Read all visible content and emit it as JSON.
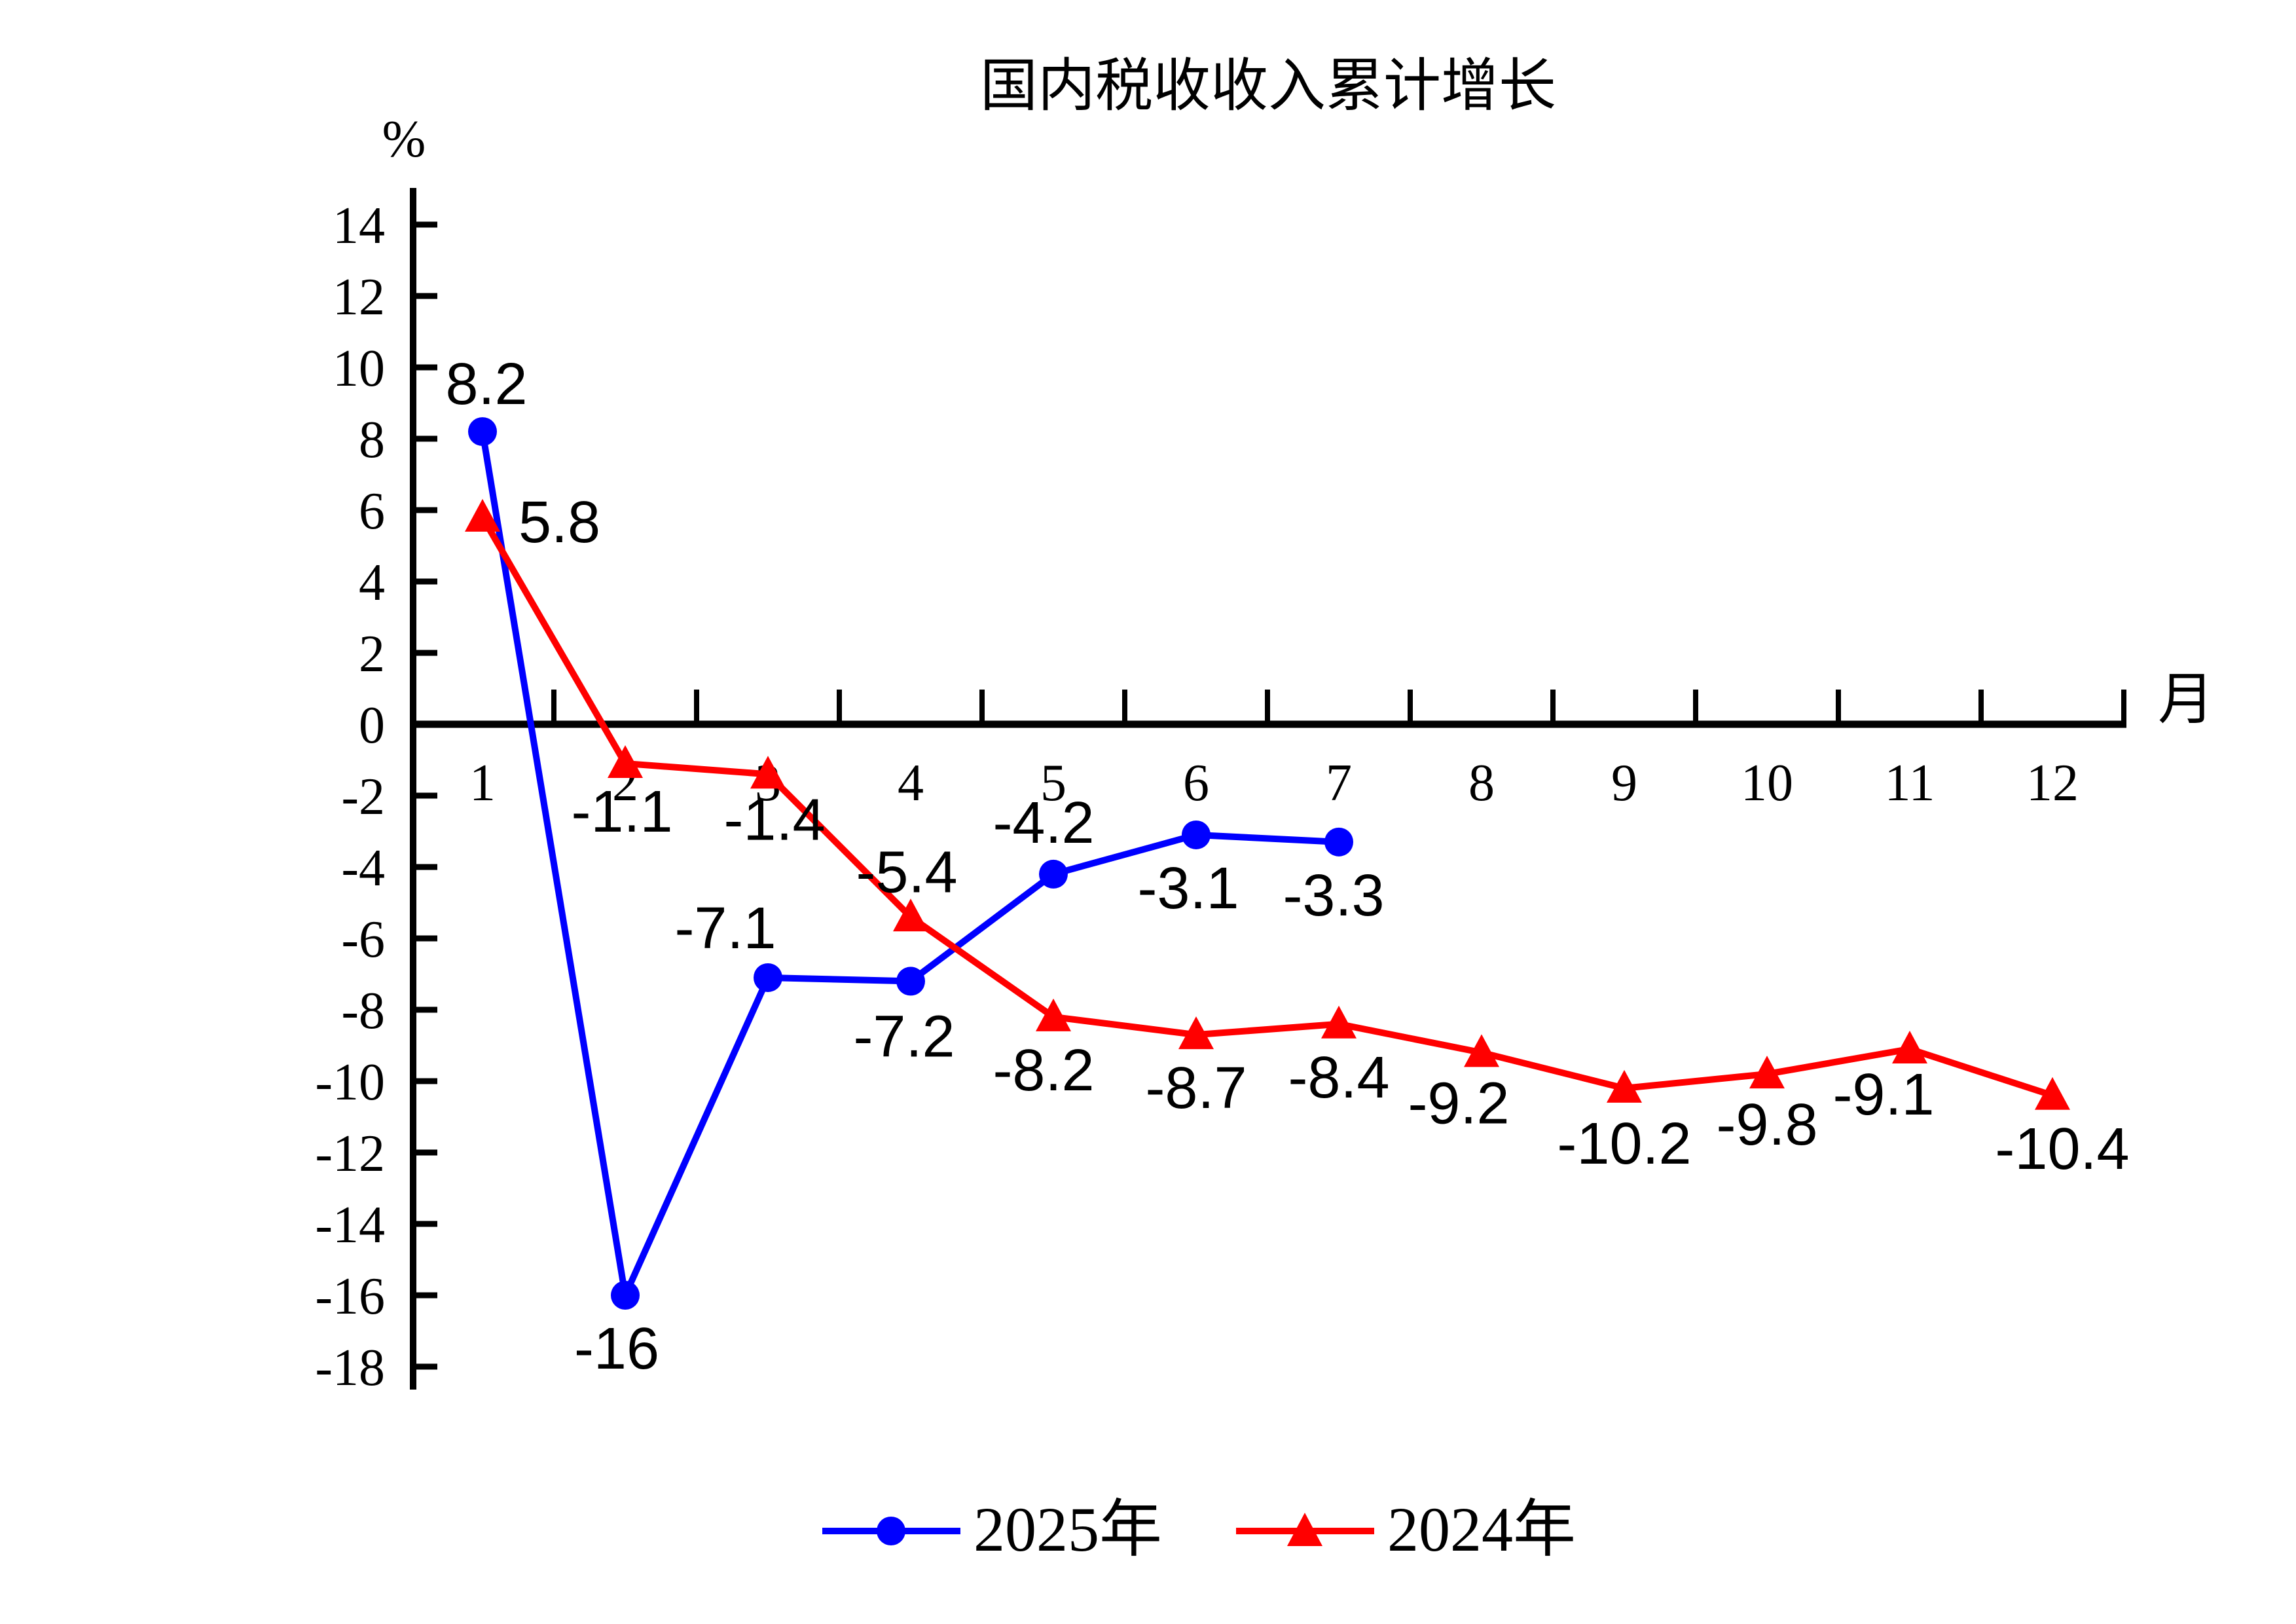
{
  "chart_data": {
    "type": "line",
    "title": "国内税收收入累计增长",
    "y_unit": "%",
    "x_unit": "月",
    "x_ticks": [
      1,
      2,
      3,
      4,
      5,
      6,
      7,
      8,
      9,
      10,
      11,
      12
    ],
    "y_ticks": [
      14,
      12,
      10,
      8,
      6,
      4,
      2,
      0,
      -2,
      -4,
      -6,
      -8,
      -10,
      -12,
      -14,
      -16,
      -18
    ],
    "ylim": [
      -18,
      14
    ],
    "xlabel": "月",
    "ylabel": "%",
    "grid": false,
    "legend_position": "bottom",
    "series": [
      {
        "name": "2025年",
        "color": "#0000FF",
        "marker": "circle",
        "x": [
          1,
          2,
          3,
          4,
          5,
          6,
          7
        ],
        "values": [
          8.2,
          -16,
          -7.1,
          -7.2,
          -4.2,
          -3.1,
          -3.3
        ],
        "labels": [
          "8.2",
          "-16",
          "-7.1",
          "-7.2",
          "-4.2",
          "-3.1",
          "-3.3"
        ]
      },
      {
        "name": "2024年",
        "color": "#FF0000",
        "marker": "triangle",
        "x": [
          1,
          2,
          3,
          4,
          5,
          6,
          7,
          8,
          9,
          10,
          11,
          12
        ],
        "values": [
          5.8,
          -1.1,
          -1.4,
          -5.4,
          -8.2,
          -8.7,
          -8.4,
          -9.2,
          -10.2,
          -9.8,
          -9.1,
          -10.4
        ],
        "labels": [
          "5.8",
          "-1.1",
          "-1.4",
          "-5.4",
          "-8.2",
          "-8.7",
          "-8.4",
          "-9.2",
          "-10.2",
          "-9.8",
          "-9.1",
          "-10.4"
        ]
      }
    ]
  }
}
